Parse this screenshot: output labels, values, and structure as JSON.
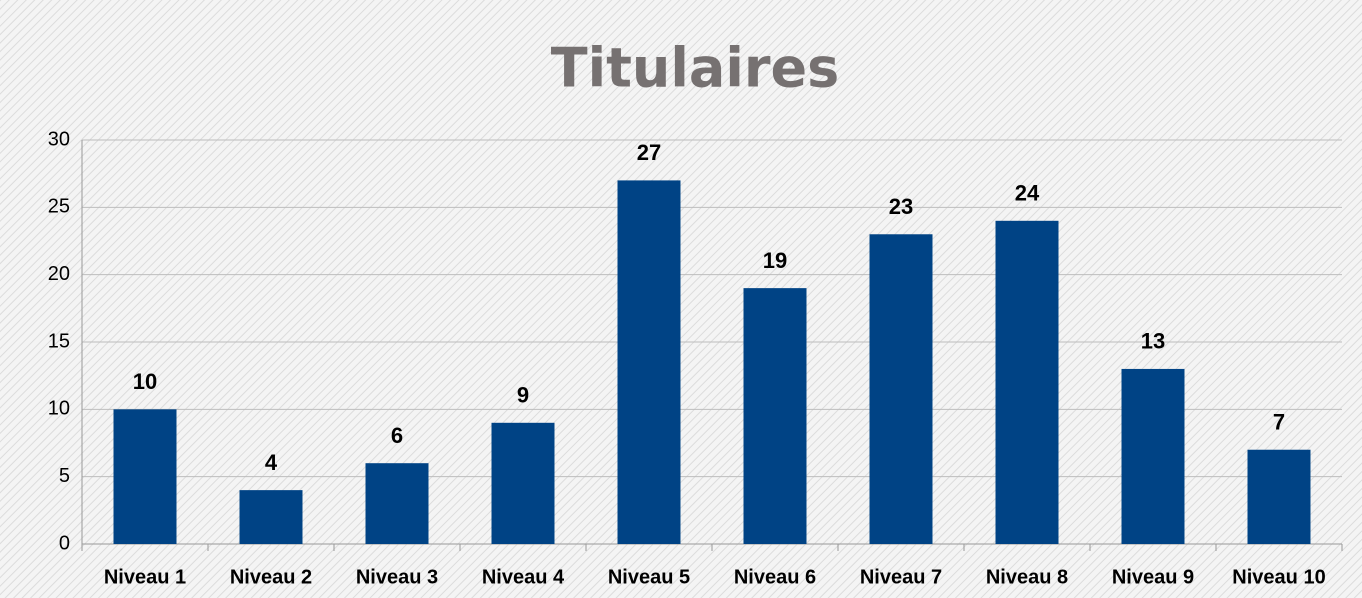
{
  "chart_data": {
    "type": "bar",
    "title": "Titulaires",
    "categories": [
      "Niveau 1",
      "Niveau 2",
      "Niveau 3",
      "Niveau 4",
      "Niveau 5",
      "Niveau 6",
      "Niveau 7",
      "Niveau 8",
      "Niveau 9",
      "Niveau 10"
    ],
    "values": [
      10,
      4,
      6,
      9,
      27,
      19,
      23,
      24,
      13,
      7
    ],
    "color": "#004385",
    "ylim": [
      0,
      30
    ],
    "yticks": [
      0,
      5,
      10,
      15,
      20,
      25,
      30
    ],
    "grid": true
  }
}
